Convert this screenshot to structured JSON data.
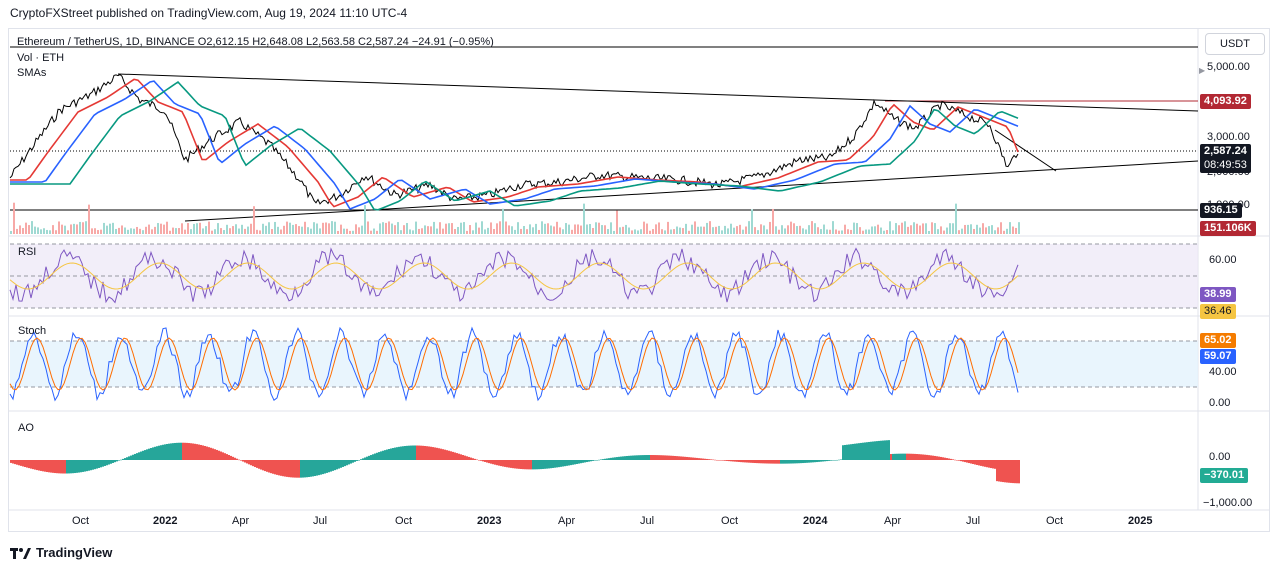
{
  "publisher_line": "CryptoFXStreet published on TradingView.com, Aug 19, 2024 11:10 UTC-4",
  "header": {
    "title": "Ethereum / TetherUS, 1D, BINANCE",
    "open": "O2,612.15",
    "high": "H2,648.08",
    "low": "L2,563.58",
    "close": "C2,587.24",
    "change": "−24.91 (−0.95%)"
  },
  "sub_labels": {
    "volume": "Vol · ETH",
    "smas": "SMAs"
  },
  "currency": "USDT",
  "price_axis": {
    "ticks": [
      "5,000.00",
      "3,000.00",
      "2,000.00",
      "1,000.00"
    ],
    "badges": {
      "resistance": "4,093.92",
      "last_price": "2,587.24",
      "countdown": "08:49:53",
      "support": "936.15",
      "volume": "151.106K"
    }
  },
  "rsi": {
    "label": "RSI",
    "ticks": [
      "60.00"
    ],
    "value": "38.99",
    "ma_value": "36.46"
  },
  "stoch": {
    "label": "Stoch",
    "ticks": [
      "40.00",
      "0.00"
    ],
    "k_value": "65.02",
    "d_value": "59.07"
  },
  "ao": {
    "label": "AO",
    "ticks": [
      "0.00",
      "−1,000.00"
    ],
    "value": "−370.01"
  },
  "time_axis": [
    "Oct",
    "2022",
    "Apr",
    "Jul",
    "Oct",
    "2023",
    "Apr",
    "Jul",
    "Oct",
    "2024",
    "Apr",
    "Jul",
    "Oct",
    "2025"
  ],
  "footer": {
    "brand": "TradingView"
  },
  "colors": {
    "candles": "#000000",
    "sma_fast": "#e53935",
    "sma_mid": "#2962ff",
    "sma_slow": "#089981",
    "rsi": "#7e57c2",
    "rsi_ma": "#f5c542",
    "stoch_k": "#2962ff",
    "stoch_d": "#ff6d00",
    "ao_up": "#26a69a",
    "ao_down": "#ef5350",
    "resistance_badge": "#b22833",
    "volume_badge": "#b22833",
    "rsi_badge": "#7e57c2",
    "stoch_k_badge": "#2962ff",
    "stoch_d_badge": "#f57c00",
    "ao_badge": "#22ab94"
  }
}
